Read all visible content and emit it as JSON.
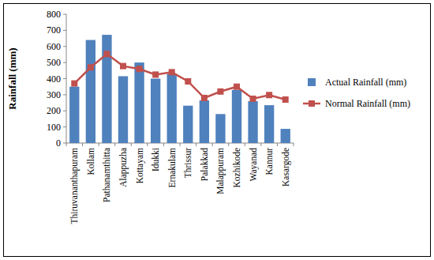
{
  "chart_data": {
    "type": "bar",
    "y_label": "Rainfall (mm)",
    "categories": [
      "Thiruvananthapuram",
      "Kollam",
      "Pathanamthitta",
      "Alappuzha",
      "Kottayam",
      "Idukki",
      "Ernakulam",
      "Thrissur",
      "Palakkad",
      "Malappuram",
      "Kozhikode",
      "Wayanad",
      "Kannur",
      "Kasargode"
    ],
    "series": [
      {
        "name": "Actual Rainfall (mm)",
        "type": "bar",
        "color": "#4f81bd",
        "values": [
          350,
          640,
          672,
          415,
          500,
          400,
          430,
          232,
          265,
          180,
          330,
          260,
          235,
          88
        ]
      },
      {
        "name": "Normal Rainfall (mm)",
        "type": "line",
        "color": "#c0504d",
        "marker": "square",
        "values": [
          370,
          470,
          553,
          478,
          460,
          425,
          440,
          383,
          280,
          320,
          350,
          275,
          298,
          270
        ]
      }
    ],
    "ylim": [
      0,
      800
    ],
    "yticks": [
      0,
      100,
      200,
      300,
      400,
      500,
      600,
      700,
      800
    ],
    "grid": false,
    "legend": "right"
  }
}
